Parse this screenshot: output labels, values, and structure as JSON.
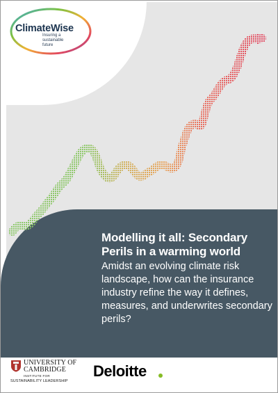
{
  "brand": {
    "name": "ClimateWise",
    "tagline_lines": [
      "Insuring a",
      "sustainable",
      "future"
    ]
  },
  "cover": {
    "title": "Modelling it all: Secondary Perils in a warming world",
    "subtitle": "Amidst an evolving climate risk landscape, how can the insurance industry refine the way it defines, measures, and underwrites secondary perils?"
  },
  "partners": {
    "cambridge_line1": "UNIVERSITY OF",
    "cambridge_line2": "CAMBRIDGE",
    "institute_line": "INSTITUTE FOR",
    "leadership_line": "SUSTAINABILITY LEADERSHIP",
    "deloitte": "Deloitte"
  },
  "colors": {
    "panel_dark": "#475864",
    "panel_light": "#e6e6e6",
    "line_start": "#8dc86b",
    "line_mid": "#e8a35a",
    "line_end": "#e2475f",
    "deloitte_green": "#86bc25"
  }
}
